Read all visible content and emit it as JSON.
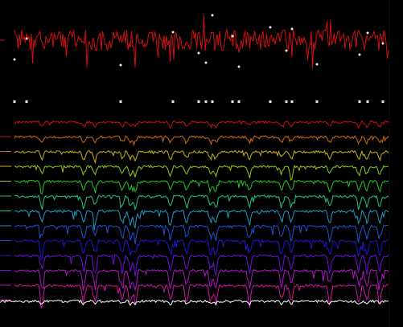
{
  "viewer": {
    "background": "#000000",
    "source_trace_color": "#d40f0f",
    "event_marker_color": "#ffe4e4",
    "average_trace_color": "#ffffff",
    "channel_colors": [
      "#cc1111",
      "#d26a11",
      "#c8b411",
      "#8fcf10",
      "#24c823",
      "#1ec98a",
      "#1b9fc4",
      "#1d54d6",
      "#2414d7",
      "#6b12d8",
      "#b414c9",
      "#d413aa"
    ],
    "channel_count": 12,
    "event_count": 16
  }
}
